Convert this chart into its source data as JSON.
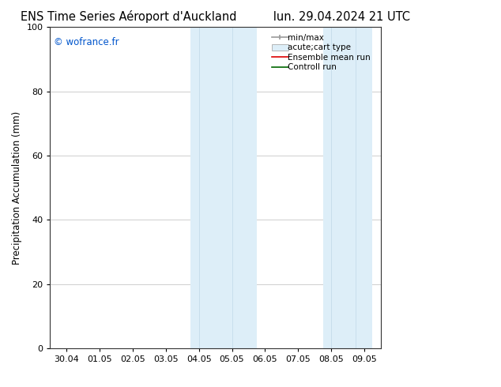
{
  "title_left": "ENS Time Series Aéroport d'Auckland",
  "title_right": "lun. 29.04.2024 21 UTC",
  "ylabel": "Precipitation Accumulation (mm)",
  "watermark": "© wofrance.fr",
  "watermark_color": "#0055cc",
  "ylim": [
    0,
    100
  ],
  "yticks": [
    0,
    20,
    40,
    60,
    80,
    100
  ],
  "xlim": [
    -0.5,
    9.5
  ],
  "xtick_labels": [
    "30.04",
    "01.05",
    "02.05",
    "03.05",
    "04.05",
    "05.05",
    "06.05",
    "07.05",
    "08.05",
    "09.05"
  ],
  "xtick_positions": [
    0,
    1,
    2,
    3,
    4,
    5,
    6,
    7,
    8,
    9
  ],
  "shaded_regions": [
    {
      "xmin": 3.75,
      "xmax": 4.25,
      "color": "#ddeef8",
      "divider": 4.0
    },
    {
      "xmin": 4.25,
      "xmax": 5.75,
      "color": "#ddeef8",
      "divider": 5.0
    },
    {
      "xmin": 7.75,
      "xmax": 8.25,
      "color": "#ddeef8",
      "divider": 8.0
    },
    {
      "xmin": 8.25,
      "xmax": 9.25,
      "color": "#ddeef8",
      "divider": 8.75
    }
  ],
  "background_color": "#ffffff",
  "plot_bg_color": "#ffffff",
  "grid_color": "#bbbbbb",
  "title_fontsize": 10.5,
  "tick_fontsize": 8,
  "ylabel_fontsize": 8.5,
  "legend_fontsize": 7.5
}
